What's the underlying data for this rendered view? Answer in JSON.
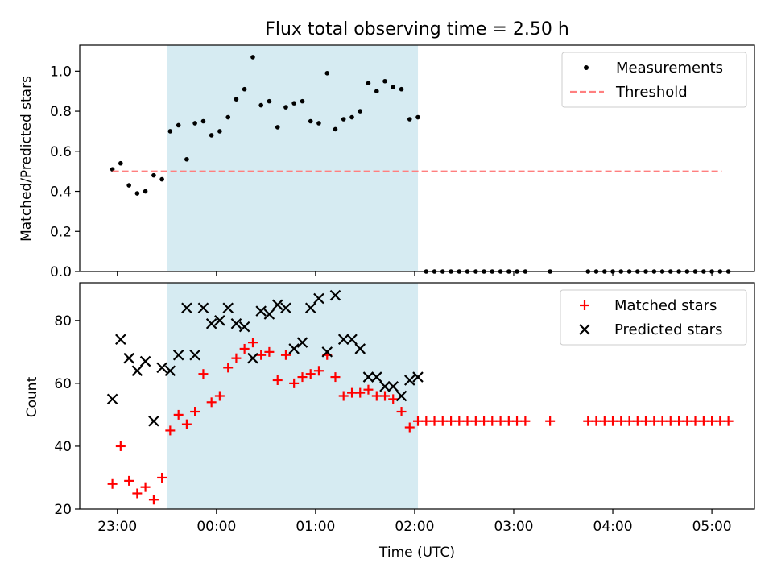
{
  "chart_data": [
    {
      "type": "scatter",
      "title": "Flux total observing time = 2.50 h",
      "ylabel": "Matched/Predicted stars",
      "xlabel": "",
      "ylim": [
        0,
        1.13
      ],
      "yticks": [
        0.0,
        0.2,
        0.4,
        0.6,
        0.8,
        1.0
      ],
      "ytick_labels": [
        "0.0",
        "0.2",
        "0.4",
        "0.6",
        "0.8",
        "1.0"
      ],
      "shaded_interval": {
        "start_hours": 23.5,
        "end_hours": 26.0333
      },
      "legend": {
        "position": "top-right",
        "entries": [
          "Measurements",
          "Threshold"
        ]
      },
      "series": [
        {
          "name": "Measurements",
          "marker": "dot",
          "color": "#000000",
          "x": [
            22.95,
            23.033,
            23.117,
            23.2,
            23.283,
            23.367,
            23.45,
            23.533,
            23.617,
            23.7,
            23.783,
            23.867,
            23.95,
            24.033,
            24.117,
            24.2,
            24.283,
            24.367,
            24.45,
            24.533,
            24.617,
            24.7,
            24.783,
            24.867,
            24.95,
            25.033,
            25.117,
            25.2,
            25.283,
            25.367,
            25.45,
            25.533,
            25.617,
            25.7,
            25.783,
            25.867,
            25.95,
            26.033,
            26.117,
            26.2,
            26.283,
            26.367,
            26.45,
            26.533,
            26.617,
            26.7,
            26.783,
            26.867,
            26.95,
            27.033,
            27.117,
            27.367,
            27.75,
            27.833,
            27.917,
            28.0,
            28.083,
            28.167,
            28.25,
            28.333,
            28.417,
            28.5,
            28.583,
            28.667,
            28.75,
            28.833,
            28.917,
            29.0,
            29.083,
            29.167
          ],
          "y": [
            0.51,
            0.54,
            0.43,
            0.39,
            0.4,
            0.48,
            0.46,
            0.7,
            0.73,
            0.56,
            0.74,
            0.75,
            0.68,
            0.7,
            0.77,
            0.86,
            0.91,
            1.07,
            0.83,
            0.85,
            0.72,
            0.82,
            0.84,
            0.85,
            0.75,
            0.74,
            0.99,
            0.71,
            0.76,
            0.77,
            0.8,
            0.94,
            0.9,
            0.95,
            0.92,
            0.91,
            0.76,
            0.77,
            0,
            0,
            0,
            0,
            0,
            0,
            0,
            0,
            0,
            0,
            0,
            0,
            0,
            0,
            0,
            0,
            0,
            0,
            0,
            0,
            0,
            0,
            0,
            0,
            0,
            0,
            0,
            0,
            0,
            0,
            0,
            0
          ]
        },
        {
          "name": "Threshold",
          "line_style": "dashed",
          "color": "#ff7f7f",
          "x": [
            22.95,
            29.1
          ],
          "y": [
            0.5,
            0.5
          ]
        }
      ]
    },
    {
      "type": "scatter",
      "title": "",
      "xlabel": "Time (UTC)",
      "ylabel": "Count",
      "ylim": [
        20,
        92
      ],
      "yticks": [
        20,
        40,
        60,
        80
      ],
      "ytick_labels": [
        "20",
        "40",
        "60",
        "80"
      ],
      "xlim": [
        22.62,
        29.43
      ],
      "xticks": [
        23,
        24,
        25,
        26,
        27,
        28,
        29
      ],
      "xtick_labels": [
        "23:00",
        "00:00",
        "01:00",
        "02:00",
        "03:00",
        "04:00",
        "05:00"
      ],
      "shaded_interval": {
        "start_hours": 23.5,
        "end_hours": 26.0333
      },
      "legend": {
        "position": "top-right",
        "entries": [
          "Matched stars",
          "Predicted stars"
        ]
      },
      "series": [
        {
          "name": "Matched stars",
          "marker": "plus",
          "color": "#ff0000",
          "x": [
            22.95,
            23.033,
            23.117,
            23.2,
            23.283,
            23.367,
            23.45,
            23.533,
            23.617,
            23.7,
            23.783,
            23.867,
            23.95,
            24.033,
            24.117,
            24.2,
            24.283,
            24.367,
            24.45,
            24.533,
            24.617,
            24.7,
            24.783,
            24.867,
            24.95,
            25.033,
            25.117,
            25.2,
            25.283,
            25.367,
            25.45,
            25.533,
            25.617,
            25.7,
            25.783,
            25.867,
            25.95,
            26.033,
            26.117,
            26.2,
            26.283,
            26.367,
            26.45,
            26.533,
            26.617,
            26.7,
            26.783,
            26.867,
            26.95,
            27.033,
            27.117,
            27.367,
            27.75,
            27.833,
            27.917,
            28.0,
            28.083,
            28.167,
            28.25,
            28.333,
            28.417,
            28.5,
            28.583,
            28.667,
            28.75,
            28.833,
            28.917,
            29.0,
            29.083,
            29.167
          ],
          "y": [
            28,
            40,
            29,
            25,
            27,
            23,
            30,
            45,
            50,
            47,
            51,
            63,
            54,
            56,
            65,
            68,
            71,
            73,
            69,
            70,
            61,
            69,
            60,
            62,
            63,
            64,
            69,
            62,
            56,
            57,
            57,
            58,
            56,
            56,
            55,
            51,
            46,
            48,
            48,
            48,
            48,
            48,
            48,
            48,
            48,
            48,
            48,
            48,
            48,
            48,
            48,
            48,
            48,
            48,
            48,
            48,
            48,
            48,
            48,
            48,
            48,
            48,
            48,
            48,
            48,
            48,
            48,
            48,
            48,
            48
          ]
        },
        {
          "name": "Predicted stars",
          "marker": "x",
          "color": "#000000",
          "x": [
            22.95,
            23.033,
            23.117,
            23.2,
            23.283,
            23.367,
            23.45,
            23.533,
            23.617,
            23.7,
            23.783,
            23.867,
            23.95,
            24.033,
            24.117,
            24.2,
            24.283,
            24.367,
            24.45,
            24.533,
            24.617,
            24.7,
            24.783,
            24.867,
            24.95,
            25.033,
            25.117,
            25.2,
            25.283,
            25.367,
            25.45,
            25.533,
            25.617,
            25.7,
            25.783,
            25.867,
            25.95,
            26.033
          ],
          "y": [
            55,
            74,
            68,
            64,
            67,
            48,
            65,
            64,
            69,
            84,
            69,
            84,
            79,
            80,
            84,
            79,
            78,
            68,
            83,
            82,
            85,
            84,
            71,
            73,
            84,
            87,
            70,
            88,
            74,
            74,
            71,
            62,
            62,
            59,
            59,
            56,
            61,
            62
          ]
        }
      ]
    }
  ]
}
